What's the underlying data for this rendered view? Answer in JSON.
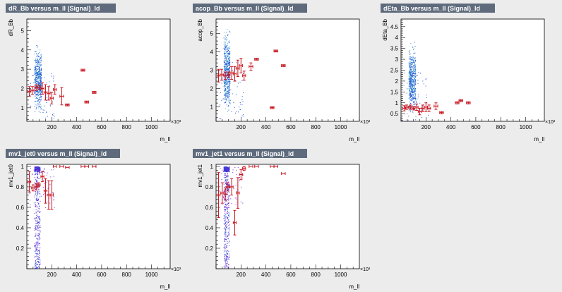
{
  "colors": {
    "background": "#ececec",
    "plot_bg": "#ffffff",
    "title_bar": "#5f6b7c",
    "title_text": "#ffffff",
    "scatter_primary": "#1e4fd8",
    "scatter_secondary": "#3aa0c8",
    "scatter_tertiary": "#6a1fd0",
    "profile": "#c8141e",
    "axis": "#000000"
  },
  "panels": [
    {
      "id": "dR_Bb",
      "title": "dR_Bb versus m_ll (Signal)_ld",
      "chart_data": {
        "type": "scatter",
        "title": "dR_Bb versus m_ll (Signal)_ld",
        "xlabel": "m_ll",
        "ylabel": "dR_Bb",
        "x_exponent": "×10³",
        "xlim": [
          0,
          1150
        ],
        "ylim": [
          0.3,
          5.6
        ],
        "xticks": [
          200,
          400,
          600,
          800,
          1000
        ],
        "yticks": [
          1,
          2,
          3,
          4,
          5
        ],
        "scatter_band": {
          "x_range": [
            60,
            115
          ],
          "y_range": [
            0.45,
            4.5
          ]
        },
        "profile": [
          {
            "x": 20,
            "y": 1.85,
            "ex": 12,
            "ey": 0.25
          },
          {
            "x": 45,
            "y": 1.9,
            "ex": 12,
            "ey": 0.2
          },
          {
            "x": 75,
            "y": 2.05,
            "ex": 12,
            "ey": 0.15
          },
          {
            "x": 100,
            "y": 2.05,
            "ex": 12,
            "ey": 0.1
          },
          {
            "x": 125,
            "y": 2.0,
            "ex": 12,
            "ey": 0.3
          },
          {
            "x": 150,
            "y": 1.8,
            "ex": 12,
            "ey": 0.4
          },
          {
            "x": 175,
            "y": 1.75,
            "ex": 12,
            "ey": 0.35
          },
          {
            "x": 200,
            "y": 1.5,
            "ex": 12,
            "ey": 0.3
          },
          {
            "x": 225,
            "y": 1.95,
            "ex": 12,
            "ey": 0.25
          },
          {
            "x": 280,
            "y": 1.6,
            "ex": 15,
            "ey": 0.45
          },
          {
            "x": 325,
            "y": 1.15,
            "ex": 15,
            "ey": 0.05
          },
          {
            "x": 450,
            "y": 2.95,
            "ex": 15,
            "ey": 0.05
          },
          {
            "x": 480,
            "y": 1.3,
            "ex": 15,
            "ey": 0.05
          },
          {
            "x": 540,
            "y": 1.8,
            "ex": 15,
            "ey": 0.05
          }
        ]
      }
    },
    {
      "id": "acop_Bb",
      "title": "acop_Bb versus m_ll (Signal)_ld",
      "chart_data": {
        "type": "scatter",
        "title": "acop_Bb versus m_ll (Signal)_ld",
        "xlabel": "m_ll",
        "ylabel": "acop_Bb",
        "x_exponent": "×10³",
        "xlim": [
          0,
          1150
        ],
        "ylim": [
          0.2,
          5.8
        ],
        "xticks": [
          200,
          400,
          600,
          800,
          1000
        ],
        "yticks": [
          1,
          2,
          3,
          4,
          5
        ],
        "scatter_band": {
          "x_range": [
            60,
            110
          ],
          "y_range": [
            0.35,
            5.6
          ]
        },
        "profile": [
          {
            "x": 20,
            "y": 2.7,
            "ex": 12,
            "ey": 0.35
          },
          {
            "x": 45,
            "y": 2.75,
            "ex": 12,
            "ey": 0.3
          },
          {
            "x": 75,
            "y": 2.7,
            "ex": 12,
            "ey": 0.2
          },
          {
            "x": 100,
            "y": 2.75,
            "ex": 12,
            "ey": 0.15
          },
          {
            "x": 125,
            "y": 2.85,
            "ex": 12,
            "ey": 0.35
          },
          {
            "x": 150,
            "y": 2.8,
            "ex": 12,
            "ey": 0.4
          },
          {
            "x": 175,
            "y": 3.1,
            "ex": 12,
            "ey": 0.45
          },
          {
            "x": 200,
            "y": 3.25,
            "ex": 12,
            "ey": 0.4
          },
          {
            "x": 225,
            "y": 2.7,
            "ex": 12,
            "ey": 0.25
          },
          {
            "x": 280,
            "y": 3.2,
            "ex": 15,
            "ey": 0.2
          },
          {
            "x": 325,
            "y": 3.6,
            "ex": 15,
            "ey": 0.05
          },
          {
            "x": 450,
            "y": 0.95,
            "ex": 15,
            "ey": 0.05
          },
          {
            "x": 480,
            "y": 4.05,
            "ex": 15,
            "ey": 0.05
          },
          {
            "x": 540,
            "y": 3.25,
            "ex": 15,
            "ey": 0.05
          }
        ]
      }
    },
    {
      "id": "dEta_Bb",
      "title": "dEta_Bb versus m_ll (Signal)_ld",
      "chart_data": {
        "type": "scatter",
        "title": "dEta_Bb versus m_ll (Signal)_ld",
        "xlabel": "m_ll",
        "ylabel": "dEta_Bb",
        "x_exponent": "×10³",
        "xlim": [
          0,
          1150
        ],
        "ylim": [
          0.15,
          4.85
        ],
        "xticks": [
          200,
          400,
          600,
          800,
          1000
        ],
        "yticks": [
          0.5,
          1,
          1.5,
          2,
          2.5,
          3,
          3.5,
          4,
          4.5
        ],
        "scatter_band": {
          "x_range": [
            60,
            115
          ],
          "y_range": [
            0.2,
            3.9
          ]
        },
        "profile": [
          {
            "x": 25,
            "y": 0.75,
            "ex": 12,
            "ey": 0.12
          },
          {
            "x": 45,
            "y": 0.8,
            "ex": 12,
            "ey": 0.1
          },
          {
            "x": 75,
            "y": 0.8,
            "ex": 12,
            "ey": 0.1
          },
          {
            "x": 100,
            "y": 0.75,
            "ex": 12,
            "ey": 0.08
          },
          {
            "x": 125,
            "y": 0.8,
            "ex": 12,
            "ey": 0.15
          },
          {
            "x": 150,
            "y": 0.6,
            "ex": 12,
            "ey": 0.15
          },
          {
            "x": 175,
            "y": 0.75,
            "ex": 12,
            "ey": 0.15
          },
          {
            "x": 200,
            "y": 0.8,
            "ex": 12,
            "ey": 0.2
          },
          {
            "x": 225,
            "y": 0.75,
            "ex": 12,
            "ey": 0.15
          },
          {
            "x": 280,
            "y": 0.85,
            "ex": 15,
            "ey": 0.15
          },
          {
            "x": 325,
            "y": 0.55,
            "ex": 15,
            "ey": 0.05
          },
          {
            "x": 450,
            "y": 1.0,
            "ex": 15,
            "ey": 0.05
          },
          {
            "x": 480,
            "y": 1.1,
            "ex": 15,
            "ey": 0.05
          },
          {
            "x": 540,
            "y": 1.0,
            "ex": 15,
            "ey": 0.05
          }
        ]
      }
    },
    {
      "id": "mv1_jet0",
      "title": "mv1_jet0 versus m_ll (Signal)_ld",
      "chart_data": {
        "type": "scatter",
        "title": "mv1_jet0 versus m_ll (Signal)_ld",
        "xlabel": "m_ll",
        "ylabel": "mv1_jet0",
        "x_exponent": "×10³",
        "xlim": [
          0,
          1150
        ],
        "ylim": [
          0.0,
          1.02
        ],
        "xticks": [
          200,
          400,
          600,
          800,
          1000
        ],
        "yticks": [
          0.2,
          0.4,
          0.6,
          0.8,
          1
        ],
        "scatter_band": {
          "x_range": [
            60,
            105
          ],
          "y_range": [
            0.0,
            1.0
          ]
        },
        "profile": [
          {
            "x": 20,
            "y": 0.85,
            "ex": 12,
            "ey": 0.1
          },
          {
            "x": 50,
            "y": 0.79,
            "ex": 12,
            "ey": 0.03
          },
          {
            "x": 75,
            "y": 0.8,
            "ex": 12,
            "ey": 0.03
          },
          {
            "x": 95,
            "y": 0.82,
            "ex": 12,
            "ey": 0.02
          },
          {
            "x": 125,
            "y": 0.9,
            "ex": 12,
            "ey": 0.05
          },
          {
            "x": 150,
            "y": 0.76,
            "ex": 12,
            "ey": 0.12
          },
          {
            "x": 175,
            "y": 0.72,
            "ex": 12,
            "ey": 0.14
          },
          {
            "x": 200,
            "y": 0.72,
            "ex": 12,
            "ey": 0.14
          },
          {
            "x": 225,
            "y": 1.0,
            "ex": 12,
            "ey": 0.0
          },
          {
            "x": 280,
            "y": 1.0,
            "ex": 15,
            "ey": 0.0
          },
          {
            "x": 325,
            "y": 0.99,
            "ex": 15,
            "ey": 0.0
          },
          {
            "x": 450,
            "y": 1.0,
            "ex": 15,
            "ey": 0.0
          },
          {
            "x": 480,
            "y": 1.0,
            "ex": 15,
            "ey": 0.0
          },
          {
            "x": 540,
            "y": 1.0,
            "ex": 15,
            "ey": 0.0
          }
        ]
      }
    },
    {
      "id": "mv1_jet1",
      "title": "mv1_jet1 versus m_ll (Signal)_ld",
      "chart_data": {
        "type": "scatter",
        "title": "mv1_jet1 versus m_ll (Signal)_ld",
        "xlabel": "m_ll",
        "ylabel": "mv1_jet1",
        "x_exponent": "×10³",
        "xlim": [
          0,
          1150
        ],
        "ylim": [
          0.0,
          1.02
        ],
        "xticks": [
          200,
          400,
          600,
          800,
          1000
        ],
        "yticks": [
          0.2,
          0.4,
          0.6,
          0.8,
          1
        ],
        "scatter_band": {
          "x_range": [
            60,
            105
          ],
          "y_range": [
            0.0,
            1.0
          ]
        },
        "profile": [
          {
            "x": 20,
            "y": 0.72,
            "ex": 12,
            "ey": 0.22
          },
          {
            "x": 50,
            "y": 0.74,
            "ex": 12,
            "ey": 0.1
          },
          {
            "x": 75,
            "y": 0.73,
            "ex": 12,
            "ey": 0.06
          },
          {
            "x": 95,
            "y": 0.8,
            "ex": 12,
            "ey": 0.04
          },
          {
            "x": 125,
            "y": 0.8,
            "ex": 12,
            "ey": 0.08
          },
          {
            "x": 150,
            "y": 0.45,
            "ex": 12,
            "ey": 0.12
          },
          {
            "x": 175,
            "y": 0.74,
            "ex": 12,
            "ey": 0.15
          },
          {
            "x": 200,
            "y": 0.92,
            "ex": 12,
            "ey": 0.05
          },
          {
            "x": 225,
            "y": 0.98,
            "ex": 12,
            "ey": 0.02
          },
          {
            "x": 280,
            "y": 1.0,
            "ex": 15,
            "ey": 0.0
          },
          {
            "x": 325,
            "y": 1.0,
            "ex": 15,
            "ey": 0.0
          },
          {
            "x": 450,
            "y": 1.0,
            "ex": 15,
            "ey": 0.0
          },
          {
            "x": 480,
            "y": 1.0,
            "ex": 15,
            "ey": 0.0
          },
          {
            "x": 540,
            "y": 0.93,
            "ex": 15,
            "ey": 0.0
          }
        ]
      }
    }
  ]
}
